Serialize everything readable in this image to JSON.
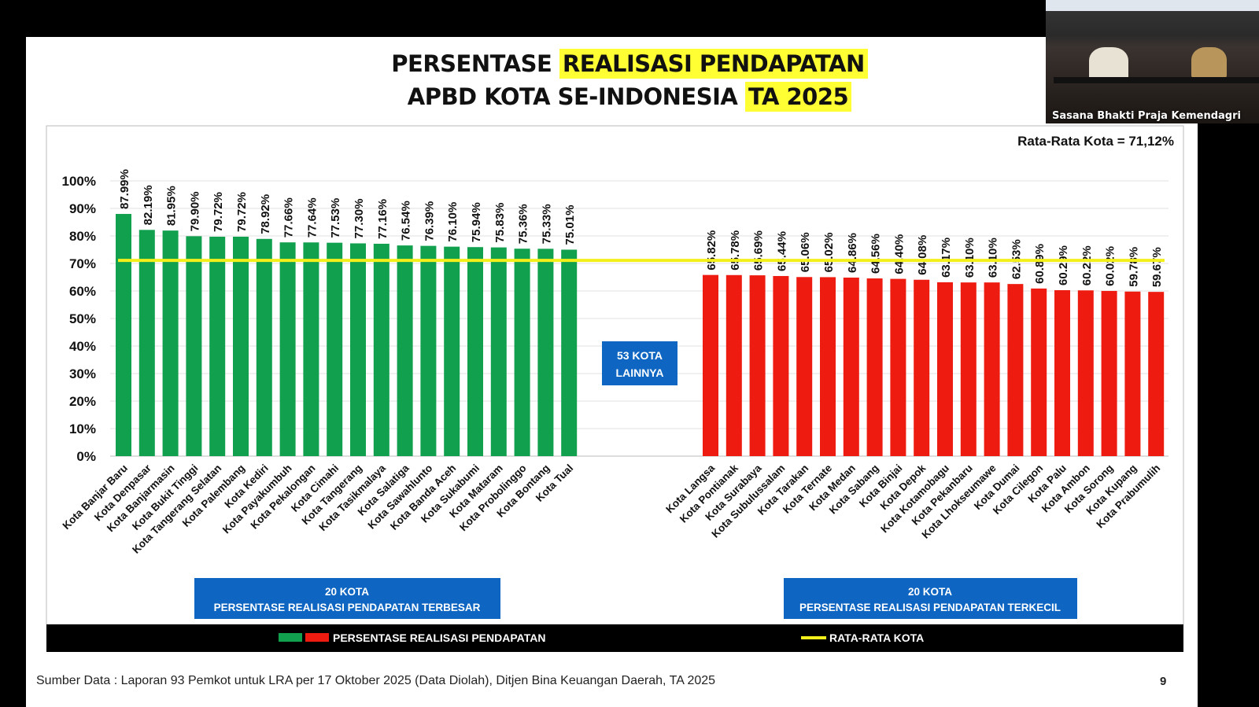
{
  "title": {
    "line1_a": "PERSENTASE ",
    "line1_b": "REALISASI PENDAPATAN",
    "line2_a": "APBD KOTA SE-INDONESIA ",
    "line2_b": "TA 2025"
  },
  "video_caption": "Sasana Bhakti Praja Kemendagri",
  "colors": {
    "green": "#11a04e",
    "red": "#ee1c10",
    "average": "#f2ef1a",
    "box": "#0f66c2"
  },
  "chart_data": {
    "type": "bar",
    "ylim": [
      0,
      100
    ],
    "yticks": [
      "0%",
      "10%",
      "20%",
      "30%",
      "40%",
      "50%",
      "60%",
      "70%",
      "80%",
      "90%",
      "100%"
    ],
    "average_label": "Rata-Rata Kota = 71,12%",
    "average": 71.12,
    "middle_label_1": "53 KOTA",
    "middle_label_2": "LAINNYA",
    "top_group": {
      "box_line1": "20 KOTA",
      "box_line2": "PERSENTASE REALISASI PENDAPATAN TERBESAR",
      "categories": [
        "Kota Banjar Baru",
        "Kota Denpasar",
        "Kota Banjarmasin",
        "Kota Bukit Tinggi",
        "Kota Tangerang Selatan",
        "Kota Palembang",
        "Kota Kediri",
        "Kota Payakumbuh",
        "Kota Pekalongan",
        "Kota Cimahi",
        "Kota Tangerang",
        "Kota Tasikmalaya",
        "Kota Salatiga",
        "Kota Sawahlunto",
        "Kota Banda Aceh",
        "Kota Sukabumi",
        "Kota Mataram",
        "Kota Probolinggo",
        "Kota Bontang",
        "Kota Tual"
      ],
      "values": [
        87.99,
        82.19,
        81.95,
        79.9,
        79.72,
        79.72,
        78.92,
        77.66,
        77.64,
        77.53,
        77.3,
        77.16,
        76.54,
        76.39,
        76.1,
        75.94,
        75.83,
        75.36,
        75.33,
        75.01
      ],
      "labels": [
        "87.99%",
        "82.19%",
        "81.95%",
        "79.90%",
        "79.72%",
        "79.72%",
        "78.92%",
        "77.66%",
        "77.64%",
        "77.53%",
        "77.30%",
        "77.16%",
        "76.54%",
        "76.39%",
        "76.10%",
        "75.94%",
        "75.83%",
        "75.36%",
        "75.33%",
        "75.01%"
      ]
    },
    "bottom_group": {
      "box_line1": "20 KOTA",
      "box_line2": "PERSENTASE REALISASI PENDAPATAN TERKECIL",
      "categories": [
        "Kota Langsa",
        "Kota Pontianak",
        "Kota Surabaya",
        "Kota Subulussalam",
        "Kota Tarakan",
        "Kota Ternate",
        "Kota Medan",
        "Kota Sabang",
        "Kota Binjai",
        "Kota Depok",
        "Kota Kotamobagu",
        "Kota Pekanbaru",
        "Kota Lhokseumawe",
        "Kota Dumai",
        "Kota Cilegon",
        "Kota Palu",
        "Kota Ambon",
        "Kota Sorong",
        "Kota Kupang",
        "Kota Prabumulih"
      ],
      "values": [
        65.82,
        65.78,
        65.69,
        65.44,
        65.06,
        65.02,
        64.86,
        64.56,
        64.4,
        64.08,
        63.17,
        63.1,
        63.1,
        62.53,
        60.89,
        60.29,
        60.22,
        60.02,
        59.78,
        59.67
      ],
      "labels": [
        "65.82%",
        "65.78%",
        "65.69%",
        "65.44%",
        "65.06%",
        "65.02%",
        "64.86%",
        "64.56%",
        "64.40%",
        "64.08%",
        "63.17%",
        "63.10%",
        "63.10%",
        "62.53%",
        "60.89%",
        "60.29%",
        "60.22%",
        "60.02%",
        "59.78%",
        "59.67%"
      ]
    },
    "legend": {
      "bars": "PERSENTASE REALISASI PENDAPATAN",
      "line": "RATA-RATA KOTA"
    }
  },
  "footer": "Sumber Data : Laporan 93 Pemkot untuk LRA per 17 Oktober 2025 (Data Diolah), Ditjen Bina Keuangan Daerah, TA 2025",
  "page_number": "9"
}
